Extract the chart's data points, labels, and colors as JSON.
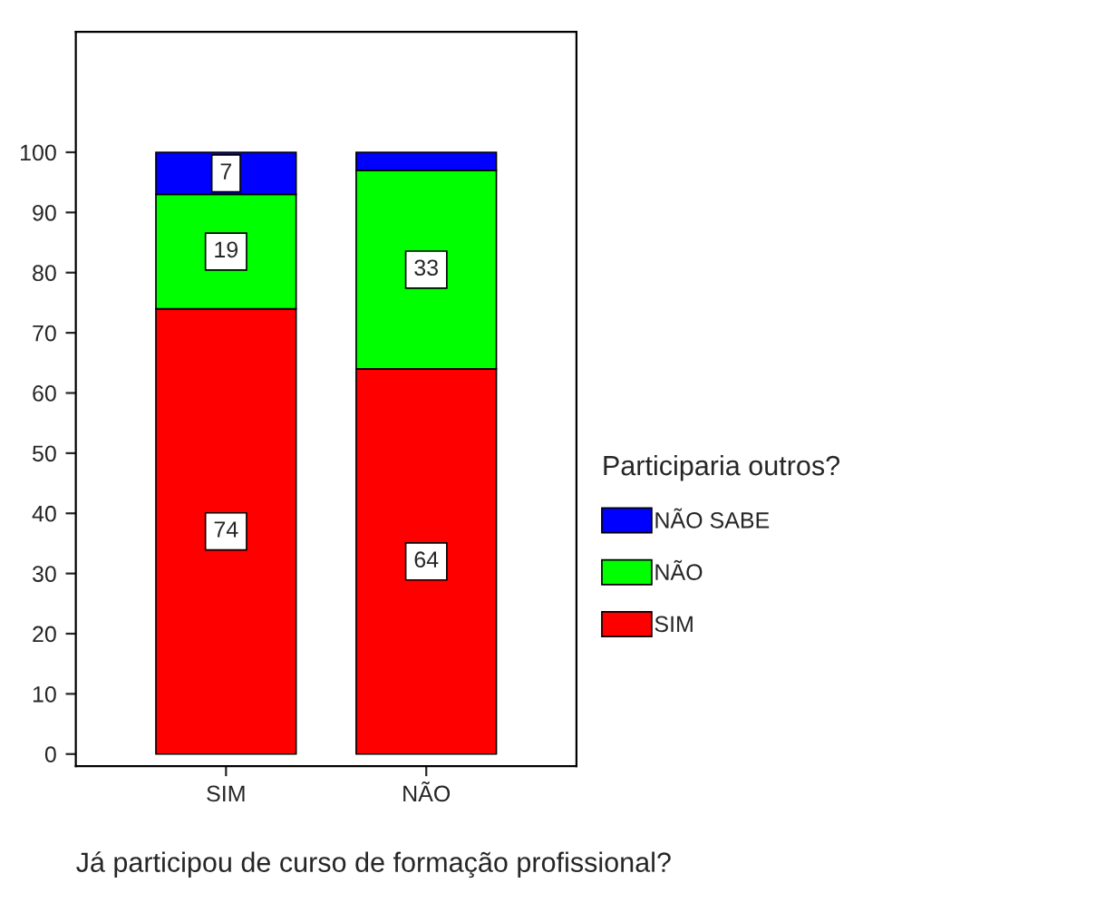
{
  "chart_data": {
    "type": "bar",
    "stacked": true,
    "xlabel": "Já participou de curso de formação profissional?",
    "legend_title": "Participaria outros?",
    "legend": "right",
    "categories": [
      "SIM",
      "NÃO"
    ],
    "series": [
      {
        "name": "SIM",
        "color": "#ff0000",
        "values": [
          74,
          64
        ],
        "value_labels": [
          "74",
          "64"
        ]
      },
      {
        "name": "NÃO",
        "color": "#00ff00",
        "values": [
          19,
          33
        ],
        "value_labels": [
          "19",
          "33"
        ]
      },
      {
        "name": "NÃO SABE",
        "color": "#0000ff",
        "values": [
          7,
          3
        ],
        "value_labels": [
          "7",
          null
        ]
      }
    ],
    "ylim": [
      -2,
      120
    ],
    "yticks": [
      0,
      10,
      20,
      30,
      40,
      50,
      60,
      70,
      80,
      90,
      100
    ],
    "grid": false
  }
}
